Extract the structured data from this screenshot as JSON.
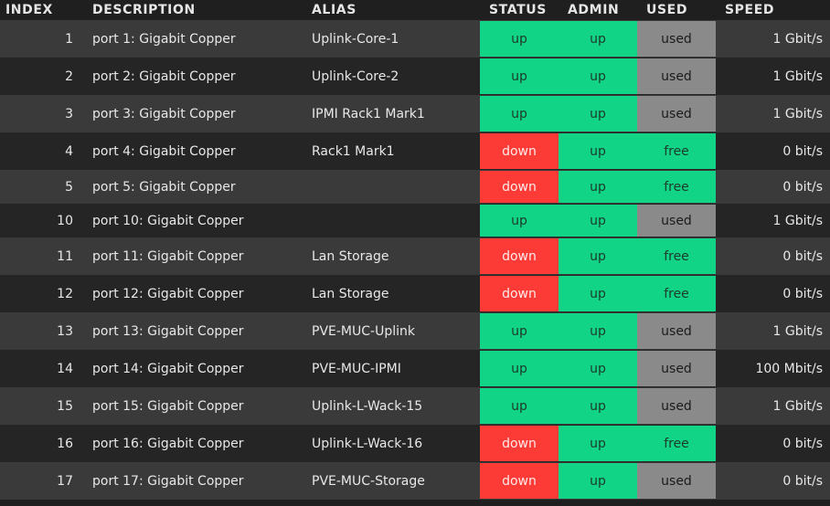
{
  "headers": {
    "index": "INDEX",
    "description": "DESCRIPTION",
    "alias": "ALIAS",
    "status": "STATUS",
    "admin": "ADMIN",
    "used": "USED",
    "speed": "SPEED"
  },
  "colors": {
    "up": "#12d487",
    "down": "#fc3b37",
    "free": "#12d487",
    "used": "#8a8a8a"
  },
  "rows": [
    {
      "index": "1",
      "description": "port 1: Gigabit Copper",
      "alias": "Uplink-Core-1",
      "status": "up",
      "admin": "up",
      "used": "used",
      "speed": "1 Gbit/s"
    },
    {
      "index": "2",
      "description": "port 2: Gigabit Copper",
      "alias": "Uplink-Core-2",
      "status": "up",
      "admin": "up",
      "used": "used",
      "speed": "1 Gbit/s"
    },
    {
      "index": "3",
      "description": "port 3: Gigabit Copper",
      "alias": "IPMI Rack1 Mark1",
      "status": "up",
      "admin": "up",
      "used": "used",
      "speed": "1 Gbit/s"
    },
    {
      "index": "4",
      "description": "port 4: Gigabit Copper",
      "alias": "Rack1 Mark1",
      "status": "down",
      "admin": "up",
      "used": "free",
      "speed": "0 bit/s"
    },
    {
      "index": "5",
      "description": "port 5: Gigabit Copper",
      "alias": "",
      "status": "down",
      "admin": "up",
      "used": "free",
      "speed": "0 bit/s"
    },
    {
      "index": "10",
      "description": "port 10: Gigabit Copper",
      "alias": "",
      "status": "up",
      "admin": "up",
      "used": "used",
      "speed": "1 Gbit/s"
    },
    {
      "index": "11",
      "description": "port 11: Gigabit Copper",
      "alias": "Lan Storage",
      "status": "down",
      "admin": "up",
      "used": "free",
      "speed": "0 bit/s"
    },
    {
      "index": "12",
      "description": "port 12: Gigabit Copper",
      "alias": "Lan Storage",
      "status": "down",
      "admin": "up",
      "used": "free",
      "speed": "0 bit/s"
    },
    {
      "index": "13",
      "description": "port 13: Gigabit Copper",
      "alias": "PVE-MUC-Uplink",
      "status": "up",
      "admin": "up",
      "used": "used",
      "speed": "1 Gbit/s"
    },
    {
      "index": "14",
      "description": "port 14: Gigabit Copper",
      "alias": "PVE-MUC-IPMI",
      "status": "up",
      "admin": "up",
      "used": "used",
      "speed": "100 Mbit/s"
    },
    {
      "index": "15",
      "description": "port 15: Gigabit Copper",
      "alias": "Uplink-L-Wack-15",
      "status": "up",
      "admin": "up",
      "used": "used",
      "speed": "1 Gbit/s"
    },
    {
      "index": "16",
      "description": "port 16: Gigabit Copper",
      "alias": "Uplink-L-Wack-16",
      "status": "down",
      "admin": "up",
      "used": "free",
      "speed": "0 bit/s"
    },
    {
      "index": "17",
      "description": "port 17: Gigabit Copper",
      "alias": "PVE-MUC-Storage",
      "status": "down",
      "admin": "up",
      "used": "used",
      "speed": "0 bit/s"
    }
  ]
}
